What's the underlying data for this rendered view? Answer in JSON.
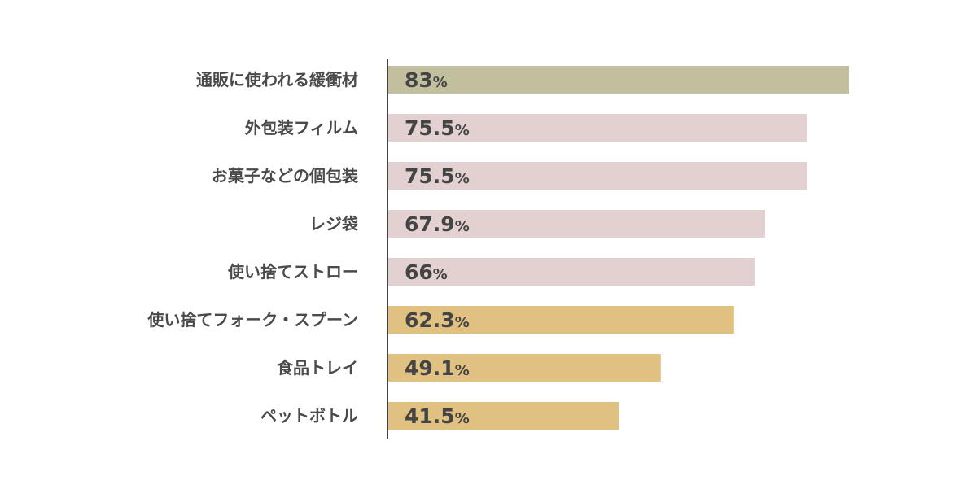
{
  "chart_data": {
    "type": "bar",
    "orientation": "horizontal",
    "categories": [
      "通販に使われる緩衝材",
      "外包装フィルム",
      "お菓子などの個包装",
      "レジ袋",
      "使い捨てストロー",
      "使い捨てフォーク・スプーン",
      "食品トレイ",
      "ペットボトル"
    ],
    "values": [
      83,
      75.5,
      75.5,
      67.9,
      66,
      62.3,
      49.1,
      41.5
    ],
    "value_labels": [
      "83",
      "75.5",
      "75.5",
      "67.9",
      "66",
      "62.3",
      "49.1",
      "41.5"
    ],
    "unit": "%",
    "bar_colors": [
      "#c2bf9f",
      "#e3d1d1",
      "#e3d1d1",
      "#e3d1d1",
      "#e3d1d1",
      "#e0c182",
      "#e0c182",
      "#e0c182"
    ],
    "axis_color": "#444444",
    "xlim": [
      0,
      83
    ],
    "grid": false,
    "legend": "none"
  }
}
